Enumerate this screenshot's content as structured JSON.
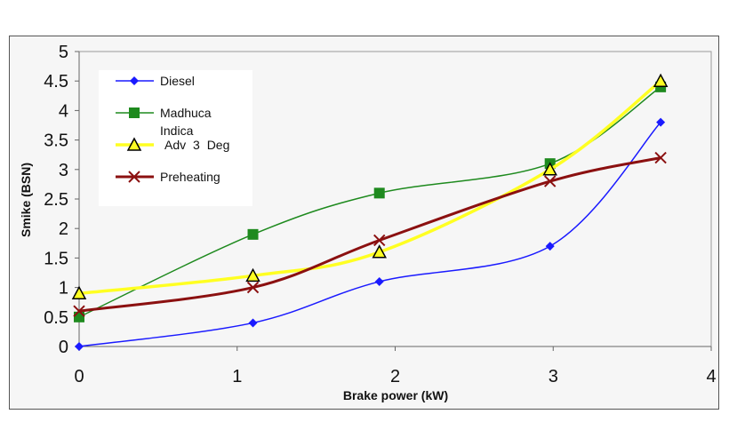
{
  "chart_data": {
    "type": "line",
    "title": "",
    "xlabel": "Brake power (kW)",
    "ylabel": "Smike (BSN)",
    "xlim": [
      0,
      4
    ],
    "ylim": [
      0,
      5
    ],
    "xticks": [
      "0",
      "1",
      "2",
      "3",
      "4"
    ],
    "yticks": [
      "0",
      "0.5",
      "1",
      "1.5",
      "2",
      "2.5",
      "3",
      "3.5",
      "4",
      "4.5",
      "5"
    ],
    "grid": false,
    "legend_position": "top-left",
    "x": [
      0,
      1.1,
      1.9,
      2.98,
      3.68
    ],
    "series": [
      {
        "name": "Diesel",
        "values": [
          0,
          0.4,
          1.1,
          1.7,
          3.8
        ],
        "color": "#1a1aff",
        "marker": "diamond"
      },
      {
        "name": "Madhuca Indica",
        "values": [
          0.5,
          1.9,
          2.6,
          3.1,
          4.4
        ],
        "color": "#1e8a1e",
        "marker": "square"
      },
      {
        "name": "Adv 3 Deg",
        "values": [
          0.9,
          1.2,
          1.6,
          3.0,
          4.5
        ],
        "color": "#ffff22",
        "marker": "triangle"
      },
      {
        "name": "Preheating",
        "values": [
          0.6,
          1.0,
          1.8,
          2.8,
          3.2
        ],
        "color": "#8b1010",
        "marker": "x"
      }
    ]
  }
}
